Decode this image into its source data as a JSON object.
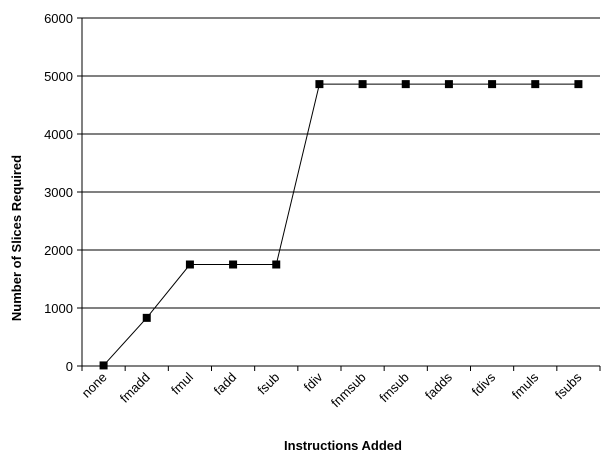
{
  "chart_data": {
    "type": "line",
    "title": "",
    "xlabel": "Instructions Added",
    "ylabel": "Number of Slices Required",
    "categories": [
      "none",
      "fmadd",
      "fmul",
      "fadd",
      "fsub",
      "fdiv",
      "fnmsub",
      "fmsub",
      "fadds",
      "fdivs",
      "fmuls",
      "fsubs"
    ],
    "series": [
      {
        "values": [
          10,
          830,
          1750,
          1750,
          1750,
          4860,
          4860,
          4860,
          4860,
          4860,
          4860,
          4860
        ],
        "color": "#000000",
        "marker": "square"
      }
    ],
    "ylim": [
      0,
      6000
    ],
    "yticks": [
      0,
      1000,
      2000,
      3000,
      4000,
      5000,
      6000
    ],
    "grid": "horizontal",
    "legend": "none"
  }
}
